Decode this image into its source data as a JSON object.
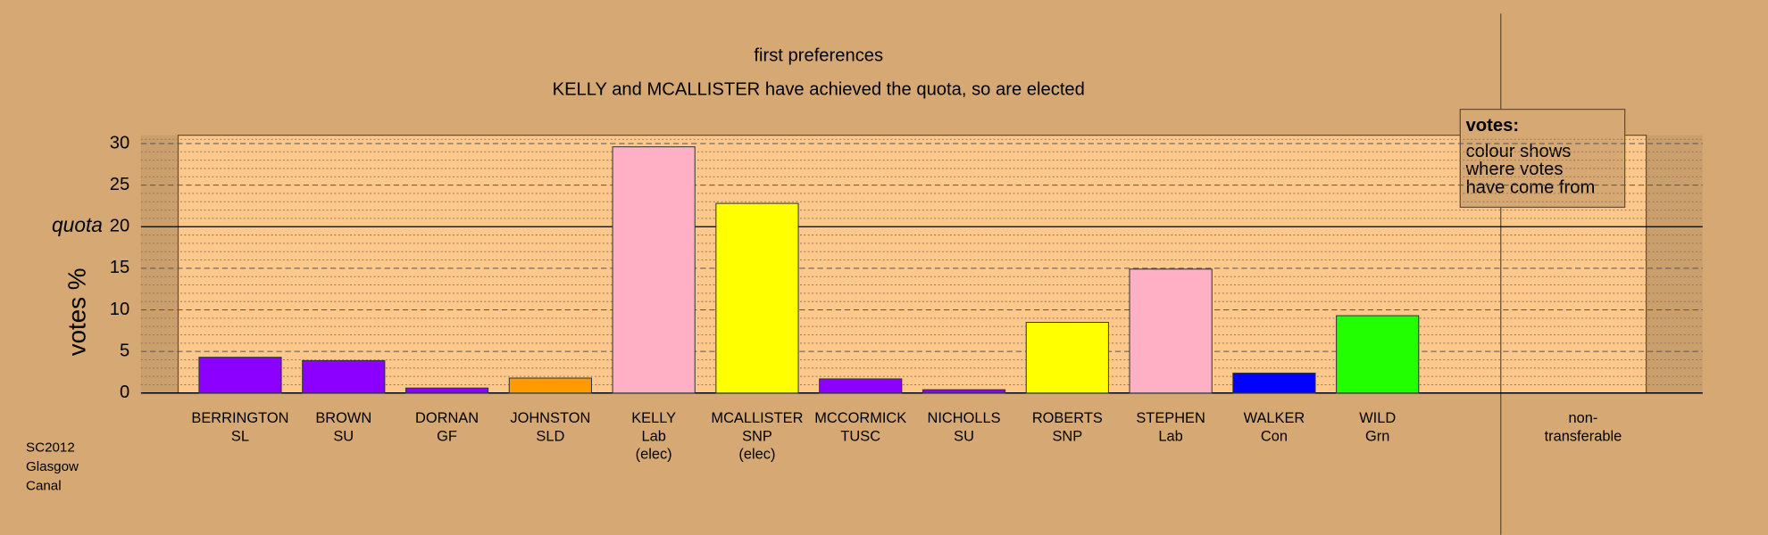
{
  "chart_data": {
    "type": "bar",
    "title": "first preferences",
    "subtitle": "KELLY and MCALLISTER have achieved the quota, so are elected",
    "y_label": "votes %",
    "categories": [
      [
        "BERRINGTON",
        "SL"
      ],
      [
        "BROWN",
        "SU"
      ],
      [
        "DORNAN",
        "GF"
      ],
      [
        "JOHNSTON",
        "SLD"
      ],
      [
        "KELLY",
        "Lab",
        "(elec)"
      ],
      [
        "MCALLISTER",
        "SNP",
        "(elec)"
      ],
      [
        "MCCORMICK",
        "TUSC"
      ],
      [
        "NICHOLLS",
        "SU"
      ],
      [
        "ROBERTS",
        "SNP"
      ],
      [
        "STEPHEN",
        "Lab"
      ],
      [
        "WALKER",
        "Con"
      ],
      [
        "WILD",
        "Grn"
      ],
      [
        "non-",
        "transferable"
      ]
    ],
    "values": [
      4.3,
      3.9,
      0.6,
      1.8,
      29.6,
      22.8,
      1.7,
      0.4,
      8.5,
      14.9,
      2.4,
      9.3,
      null
    ],
    "colors": [
      "#8c00ff",
      "#8c00ff",
      "#8c00ff",
      "#ff9a00",
      "#ffb0c4",
      "#ffff00",
      "#8c00ff",
      "#8c00ff",
      "#ffff00",
      "#ffb0c4",
      "#0000ff",
      "#22ff00",
      null
    ],
    "ylim": [
      0,
      31
    ],
    "yticks": [
      0,
      5,
      10,
      15,
      20,
      25,
      30
    ],
    "minor_yticks": [
      1,
      2,
      3,
      4,
      6,
      7,
      8,
      9,
      11,
      12,
      13,
      14,
      16,
      17,
      18,
      19,
      21,
      22,
      23,
      24,
      26,
      27,
      28,
      29,
      30.5
    ],
    "quota": 20,
    "quota_label": "quota",
    "grid": true,
    "legend": {
      "title": "votes:",
      "lines": [
        "colour shows",
        "where votes",
        "have come from"
      ]
    },
    "footer": [
      "SC2012",
      "Glasgow",
      "Canal"
    ]
  }
}
